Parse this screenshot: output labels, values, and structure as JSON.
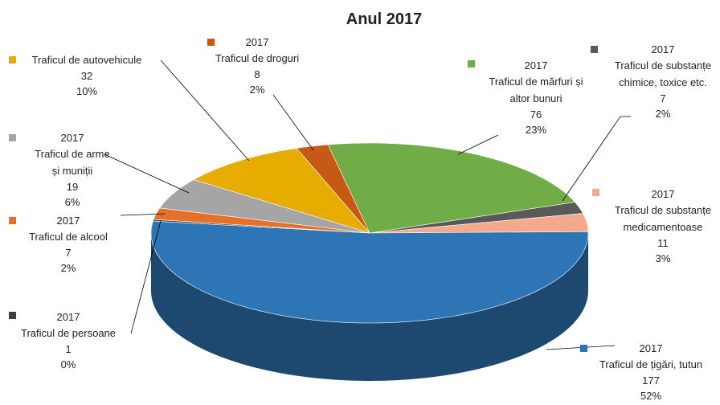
{
  "chart_data": {
    "type": "pie",
    "title": "Anul 2017",
    "series_name": "2017",
    "categories": [
      "Traficul de mărfuri și altor bunuri",
      "Traficul de substanțe chimice, toxice etc.",
      "Traficul de substanțe medicamentoase",
      "Traficul de țigări, tutun",
      "Traficul de persoane",
      "Traficul de alcool",
      "Traficul de arme și muniții",
      "Traficul de autovehicule",
      "Traficul de droguri"
    ],
    "values": [
      76,
      7,
      11,
      177,
      1,
      7,
      19,
      32,
      8
    ],
    "percent_labels": [
      "23%",
      "2%",
      "3%",
      "52%",
      "0%",
      "2%",
      "6%",
      "10%",
      "2%"
    ],
    "colors": [
      "#70ad47",
      "#595959",
      "#f4a98c",
      "#2e75b6",
      "#404040",
      "#e4702a",
      "#a5a5a5",
      "#e6ac00",
      "#c65a14"
    ]
  }
}
